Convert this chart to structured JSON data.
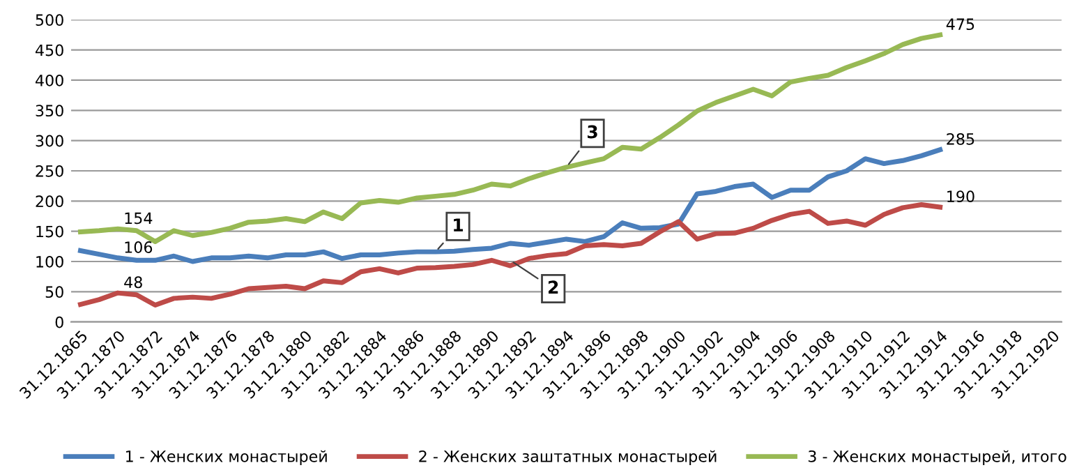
{
  "chart_data": {
    "type": "line",
    "categories": [
      "31.12.1865",
      null,
      "31.12.1870",
      null,
      "31.12.1872",
      null,
      "31.12.1874",
      null,
      "31.12.1876",
      null,
      "31.12.1878",
      null,
      "31.12.1880",
      null,
      "31.12.1882",
      null,
      "31.12.1884",
      null,
      "31.12.1886",
      null,
      "31.12.1888",
      null,
      "31.12.1890",
      null,
      "31.12.1892",
      null,
      "31.12.1894",
      null,
      "31.12.1896",
      null,
      "31.12.1898",
      null,
      "31.12.1900",
      null,
      "31.12.1902",
      null,
      "31.12.1904",
      null,
      "31.12.1906",
      null,
      "31.12.1908",
      null,
      "31.12.1910",
      null,
      "31.12.1912",
      null,
      "31.12.1914",
      null,
      "31.12.1916",
      null,
      "31.12.1918",
      null,
      "31.12.1920"
    ],
    "series": [
      {
        "name": "1 - Женских монастырей",
        "color": "#4a7ebb",
        "values": [
          118,
          112,
          106,
          102,
          102,
          109,
          100,
          106,
          106,
          109,
          106,
          111,
          111,
          116,
          105,
          111,
          111,
          114,
          116,
          116,
          117,
          120,
          122,
          130,
          127,
          132,
          137,
          133,
          141,
          164,
          155,
          156,
          162,
          212,
          216,
          224,
          228,
          206,
          218,
          218,
          240,
          250,
          270,
          262,
          267,
          275,
          285,
          null,
          null,
          null,
          null,
          null,
          null
        ],
        "value_labels": [
          null,
          null,
          "106",
          null,
          null,
          null,
          null,
          null,
          null,
          null,
          null,
          null,
          null,
          null,
          null,
          null,
          null,
          null,
          null,
          null,
          null,
          null,
          null,
          null,
          null,
          null,
          null,
          null,
          null,
          null,
          null,
          null,
          null,
          null,
          null,
          null,
          null,
          null,
          null,
          null,
          null,
          null,
          null,
          null,
          null,
          null,
          "285",
          null,
          null,
          null,
          null,
          null,
          null
        ]
      },
      {
        "name": "2 - Женских заштатных монастырей",
        "color": "#be4b48",
        "values": [
          29,
          37,
          48,
          45,
          28,
          39,
          41,
          39,
          46,
          55,
          57,
          59,
          55,
          68,
          65,
          83,
          88,
          81,
          89,
          90,
          92,
          95,
          102,
          93,
          105,
          110,
          113,
          126,
          128,
          126,
          130,
          149,
          166,
          137,
          146,
          147,
          155,
          168,
          178,
          183,
          163,
          167,
          160,
          178,
          189,
          194,
          190,
          null,
          null,
          null,
          null,
          null,
          null
        ],
        "value_labels": [
          null,
          null,
          "48",
          null,
          null,
          null,
          null,
          null,
          null,
          null,
          null,
          null,
          null,
          null,
          null,
          null,
          null,
          null,
          null,
          null,
          null,
          null,
          null,
          null,
          null,
          null,
          null,
          null,
          null,
          null,
          null,
          null,
          null,
          null,
          null,
          null,
          null,
          null,
          null,
          null,
          null,
          null,
          null,
          null,
          null,
          null,
          "190",
          null,
          null,
          null,
          null,
          null,
          null
        ]
      },
      {
        "name": "3 - Женских монастырей, итого",
        "color": "#98b954",
        "values": [
          149,
          151,
          154,
          151,
          133,
          151,
          143,
          148,
          155,
          165,
          167,
          171,
          166,
          182,
          171,
          197,
          201,
          198,
          205,
          208,
          211,
          218,
          228,
          225,
          237,
          247,
          256,
          263,
          270,
          289,
          286,
          305,
          326,
          349,
          363,
          374,
          385,
          374,
          397,
          403,
          408,
          421,
          432,
          444,
          459,
          469,
          475,
          null,
          null,
          null,
          null,
          null,
          null
        ],
        "value_labels": [
          null,
          null,
          "154",
          null,
          null,
          null,
          null,
          null,
          null,
          null,
          null,
          null,
          null,
          null,
          null,
          null,
          null,
          null,
          null,
          null,
          null,
          null,
          null,
          null,
          null,
          null,
          null,
          null,
          null,
          null,
          null,
          null,
          null,
          null,
          null,
          null,
          null,
          null,
          null,
          null,
          null,
          null,
          null,
          null,
          null,
          null,
          "475",
          null,
          null,
          null,
          null,
          null,
          null
        ]
      }
    ],
    "annotations": [
      {
        "text": "1",
        "y": 116
      },
      {
        "text": "2",
        "y": 102
      },
      {
        "text": "3",
        "y": 256
      }
    ],
    "ylim": [
      0,
      500
    ],
    "yticks": [
      0,
      50,
      100,
      150,
      200,
      250,
      300,
      350,
      400,
      450,
      500
    ],
    "grid": "y",
    "legend": "bottom",
    "marker": "none",
    "line_style": "solid"
  }
}
